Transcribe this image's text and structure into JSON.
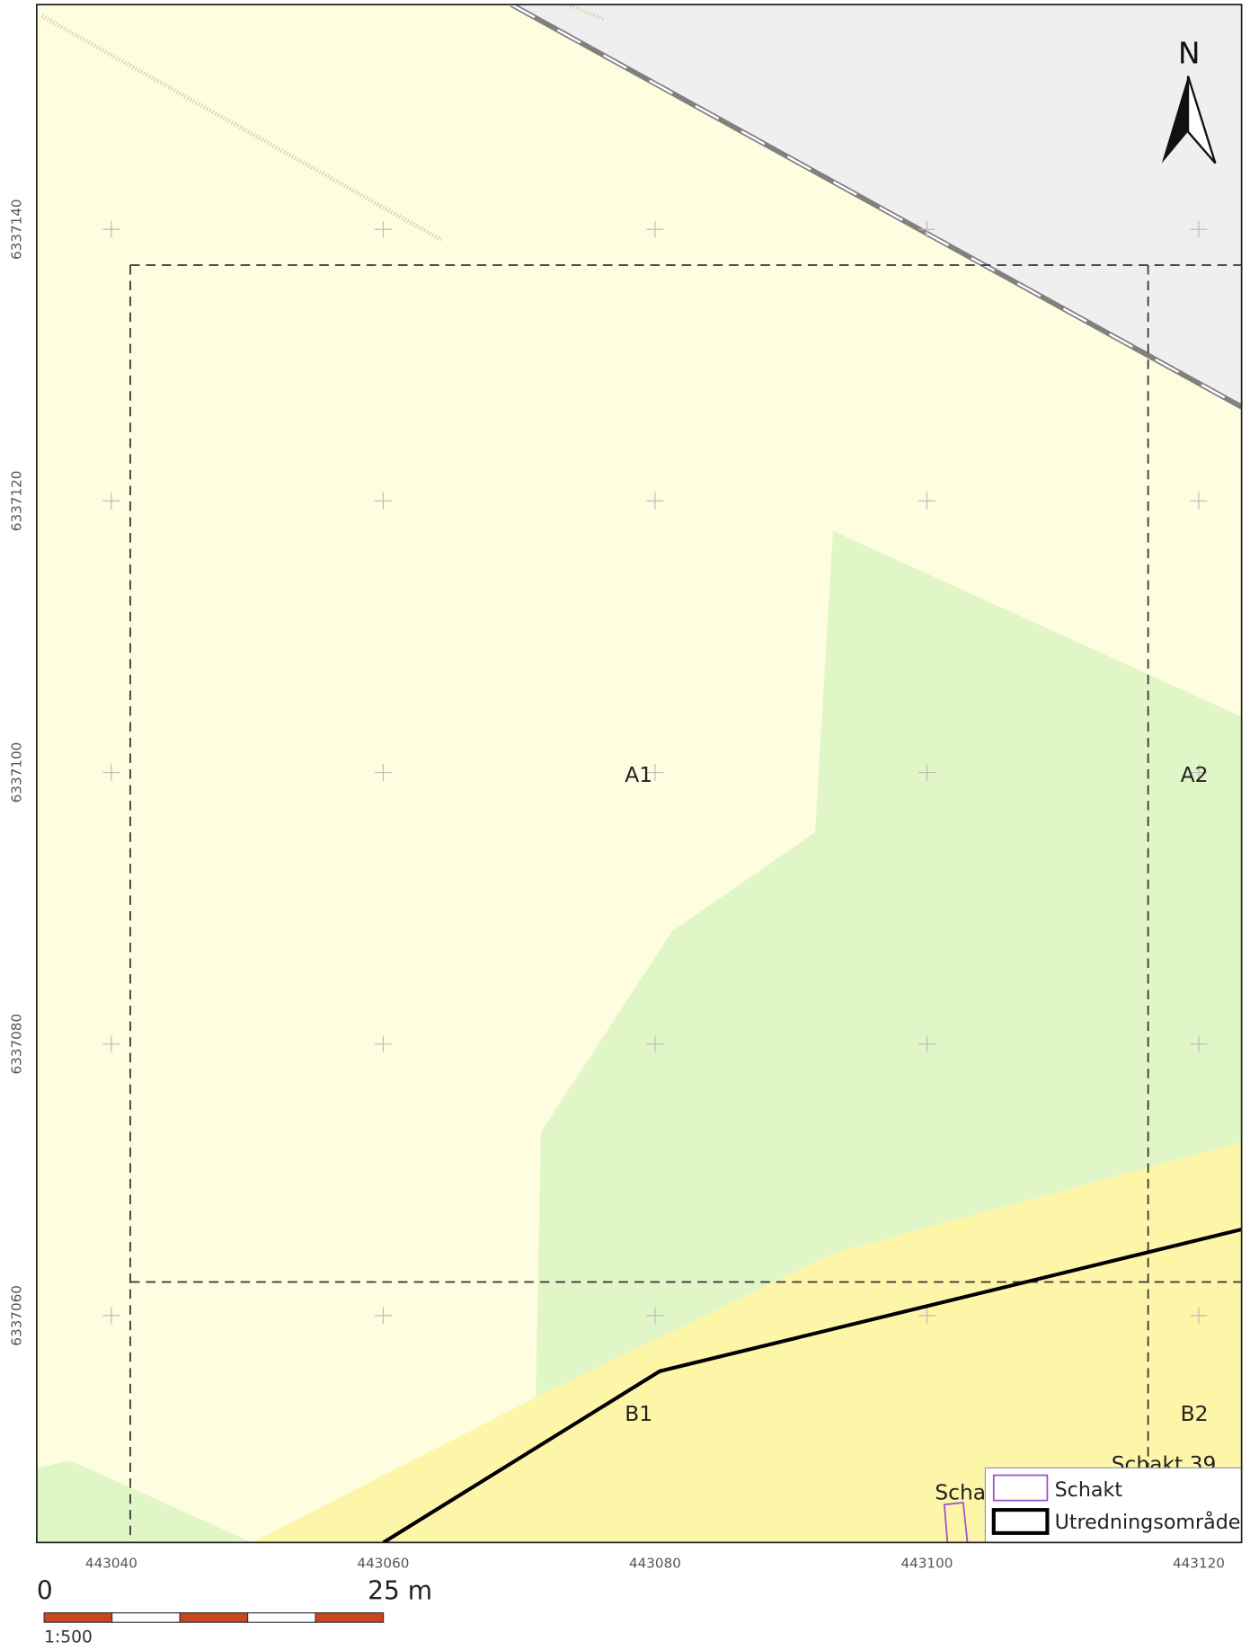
{
  "map": {
    "north": "N",
    "x_labels": [
      443040,
      443060,
      443080,
      443100,
      443120
    ],
    "y_labels": [
      6337140,
      6337120,
      6337100,
      6337080,
      6337060
    ],
    "areas": [
      "A1",
      "A2",
      "B1",
      "B2"
    ],
    "features": [
      "Scha",
      "Schakt 39"
    ],
    "legend": [
      "Schakt",
      "Utredningsområde"
    ],
    "scale": {
      "start": "0",
      "end": "25 m",
      "ratio": "1:500"
    }
  }
}
